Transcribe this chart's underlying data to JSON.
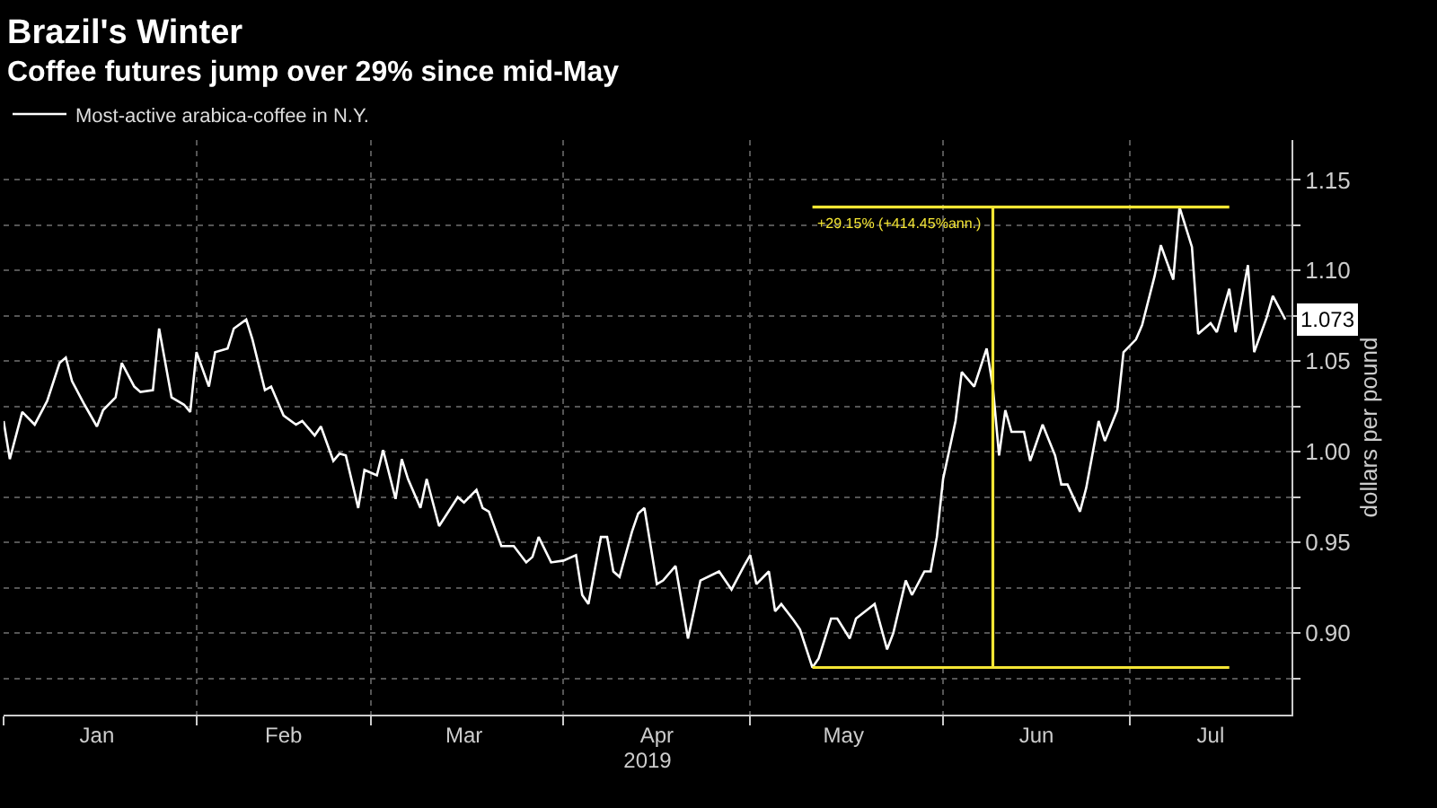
{
  "chart_data": {
    "type": "line",
    "title": "Brazil's Winter",
    "subtitle": "Coffee futures jump over 29% since mid-May",
    "xlabel": "2019",
    "ylabel": "dollars per pound",
    "xlim": [
      "2019-01-01",
      "2019-07-27"
    ],
    "xticks": [
      {
        "value": "2019-01-01",
        "label": null
      },
      {
        "value": "2019-01-16",
        "label": "Jan"
      },
      {
        "value": "2019-02-01",
        "label": null
      },
      {
        "value": "2019-02-15",
        "label": "Feb"
      },
      {
        "value": "2019-03-01",
        "label": null
      },
      {
        "value": "2019-03-16",
        "label": "Mar"
      },
      {
        "value": "2019-04-01",
        "label": null
      },
      {
        "value": "2019-04-16",
        "label": "Apr"
      },
      {
        "value": "2019-05-01",
        "label": null
      },
      {
        "value": "2019-05-16",
        "label": "May"
      },
      {
        "value": "2019-06-01",
        "label": null
      },
      {
        "value": "2019-06-16",
        "label": "Jun"
      },
      {
        "value": "2019-07-01",
        "label": null
      },
      {
        "value": "2019-07-14",
        "label": "Jul"
      }
    ],
    "ylim": [
      0.855,
      1.172
    ],
    "yticks": [
      {
        "value": 0.875,
        "label": null
      },
      {
        "value": 0.9,
        "label": "0.90"
      },
      {
        "value": 0.925,
        "label": null
      },
      {
        "value": 0.95,
        "label": "0.95"
      },
      {
        "value": 0.975,
        "label": null
      },
      {
        "value": 1.0,
        "label": "1.00"
      },
      {
        "value": 1.025,
        "label": null
      },
      {
        "value": 1.05,
        "label": "1.05"
      },
      {
        "value": 1.075,
        "label": null
      },
      {
        "value": 1.1,
        "label": "1.10"
      },
      {
        "value": 1.125,
        "label": null
      },
      {
        "value": 1.15,
        "label": "1.15"
      }
    ],
    "grid": true,
    "legend": "top left",
    "annotations": [
      {
        "text": "+29.15% (+414.45%ann.)",
        "x": "2019-06-09",
        "y": 1.135
      }
    ],
    "series": [
      {
        "name": "Most-active arabica-coffee in N.Y.",
        "color": "#ffffff",
        "x": [
          "2019-01-01",
          "2019-01-02",
          "2019-01-04",
          "2019-01-06",
          "2019-01-08",
          "2019-01-10",
          "2019-01-11",
          "2019-01-12",
          "2019-01-14",
          "2019-01-16",
          "2019-01-17",
          "2019-01-19",
          "2019-01-20",
          "2019-01-22",
          "2019-01-23",
          "2019-01-25",
          "2019-01-26",
          "2019-01-28",
          "2019-01-30",
          "2019-01-31",
          "2019-02-01",
          "2019-02-03",
          "2019-02-04",
          "2019-02-06",
          "2019-02-07",
          "2019-02-09",
          "2019-02-10",
          "2019-02-12",
          "2019-02-13",
          "2019-02-15",
          "2019-02-17",
          "2019-02-18",
          "2019-02-20",
          "2019-02-21",
          "2019-02-23",
          "2019-02-24",
          "2019-02-25",
          "2019-02-27",
          "2019-02-28",
          "2019-03-02",
          "2019-03-03",
          "2019-03-05",
          "2019-03-06",
          "2019-03-07",
          "2019-03-09",
          "2019-03-10",
          "2019-03-12",
          "2019-03-15",
          "2019-03-16",
          "2019-03-18",
          "2019-03-19",
          "2019-03-20",
          "2019-03-22",
          "2019-03-24",
          "2019-03-26",
          "2019-03-27",
          "2019-03-28",
          "2019-03-30",
          "2019-04-01",
          "2019-04-03",
          "2019-04-04",
          "2019-04-05",
          "2019-04-07",
          "2019-04-08",
          "2019-04-09",
          "2019-04-10",
          "2019-04-12",
          "2019-04-13",
          "2019-04-14",
          "2019-04-16",
          "2019-04-17",
          "2019-04-19",
          "2019-04-21",
          "2019-04-23",
          "2019-04-26",
          "2019-04-28",
          "2019-04-30",
          "2019-05-01",
          "2019-05-02",
          "2019-05-04",
          "2019-05-05",
          "2019-05-06",
          "2019-05-08",
          "2019-05-09",
          "2019-05-11",
          "2019-05-12",
          "2019-05-14",
          "2019-05-15",
          "2019-05-17",
          "2019-05-18",
          "2019-05-21",
          "2019-05-23",
          "2019-05-24",
          "2019-05-26",
          "2019-05-27",
          "2019-05-29",
          "2019-05-30",
          "2019-05-31",
          "2019-06-01",
          "2019-06-03",
          "2019-06-04",
          "2019-06-06",
          "2019-06-08",
          "2019-06-09",
          "2019-06-10",
          "2019-06-11",
          "2019-06-12",
          "2019-06-14",
          "2019-06-15",
          "2019-06-17",
          "2019-06-19",
          "2019-06-20",
          "2019-06-21",
          "2019-06-23",
          "2019-06-24",
          "2019-06-26",
          "2019-06-27",
          "2019-06-29",
          "2019-06-30",
          "2019-07-02",
          "2019-07-03",
          "2019-07-05",
          "2019-07-06",
          "2019-07-08",
          "2019-07-09",
          "2019-07-11",
          "2019-07-12",
          "2019-07-14",
          "2019-07-15",
          "2019-07-17",
          "2019-07-18",
          "2019-07-20",
          "2019-07-21",
          "2019-07-23",
          "2019-07-24",
          "2019-07-26"
        ],
        "values": [
          1.017,
          0.996,
          1.022,
          1.015,
          1.028,
          1.049,
          1.052,
          1.039,
          1.026,
          1.014,
          1.023,
          1.03,
          1.049,
          1.036,
          1.033,
          1.034,
          1.068,
          1.03,
          1.026,
          1.022,
          1.055,
          1.036,
          1.055,
          1.057,
          1.068,
          1.073,
          1.062,
          1.034,
          1.036,
          1.02,
          1.015,
          1.017,
          1.009,
          1.014,
          0.995,
          0.999,
          0.998,
          0.969,
          0.99,
          0.987,
          1.001,
          0.974,
          0.996,
          0.985,
          0.969,
          0.985,
          0.959,
          0.975,
          0.972,
          0.979,
          0.969,
          0.967,
          0.948,
          0.948,
          0.939,
          0.942,
          0.953,
          0.939,
          0.94,
          0.943,
          0.921,
          0.916,
          0.953,
          0.953,
          0.934,
          0.931,
          0.956,
          0.966,
          0.969,
          0.927,
          0.929,
          0.937,
          0.897,
          0.929,
          0.934,
          0.924,
          0.937,
          0.943,
          0.927,
          0.934,
          0.912,
          0.916,
          0.907,
          0.902,
          0.881,
          0.886,
          0.908,
          0.908,
          0.897,
          0.908,
          0.916,
          0.891,
          0.9,
          0.929,
          0.921,
          0.934,
          0.934,
          0.953,
          0.985,
          1.017,
          1.044,
          1.036,
          1.057,
          1.036,
          0.998,
          1.023,
          1.011,
          1.011,
          0.995,
          1.015,
          0.998,
          0.982,
          0.982,
          0.967,
          0.98,
          1.017,
          1.006,
          1.023,
          1.055,
          1.062,
          1.07,
          1.097,
          1.114,
          1.095,
          1.135,
          1.113,
          1.065,
          1.071,
          1.066,
          1.09,
          1.066,
          1.103,
          1.055,
          1.074,
          1.086,
          1.073
        ],
        "value_labels": [
          null,
          null,
          null,
          null,
          null,
          null,
          null,
          null,
          null,
          null,
          null,
          null,
          null,
          null,
          null,
          null,
          null,
          null,
          null,
          null,
          null,
          null,
          null,
          null,
          null,
          null,
          null,
          null,
          null,
          null,
          null,
          null,
          null,
          null,
          null,
          null,
          null,
          null,
          null,
          null,
          null,
          null,
          null,
          null,
          null,
          null,
          null,
          null,
          null,
          null,
          null,
          null,
          null,
          null,
          null,
          null,
          null,
          null,
          null,
          null,
          null,
          null,
          null,
          null,
          null,
          null,
          null,
          null,
          null,
          null,
          null,
          null,
          null,
          null,
          null,
          null,
          null,
          null,
          null,
          null,
          null,
          null,
          null,
          null,
          null,
          null,
          null,
          null,
          null,
          null,
          null,
          null,
          null,
          null,
          null,
          null,
          null,
          null,
          null,
          null,
          null,
          null,
          null,
          null,
          null,
          null,
          null,
          null,
          null,
          null,
          null,
          null,
          null,
          null,
          null,
          null,
          null,
          null,
          null,
          null,
          null,
          null,
          null,
          null,
          null,
          null,
          null,
          null,
          null,
          null,
          null,
          null,
          null,
          null,
          null,
          "1.073"
        ]
      },
      {
        "color": "#f5e634",
        "x": [
          "2019-05-11",
          "2019-07-17"
        ],
        "values": [
          0.881,
          0.881
        ]
      },
      {
        "color": "#f5e634",
        "x": [
          "2019-05-11",
          "2019-07-17"
        ],
        "values": [
          1.135,
          1.135
        ]
      },
      {
        "color": "#f5e634",
        "x": [
          "2019-06-09",
          "2019-06-09"
        ],
        "values": [
          0.881,
          1.135
        ]
      }
    ]
  }
}
